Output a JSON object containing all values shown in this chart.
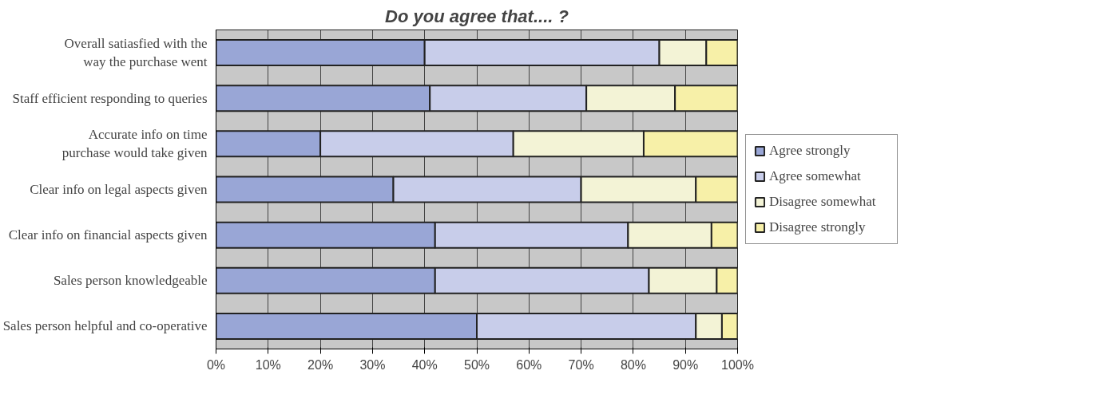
{
  "chart_data": {
    "type": "bar",
    "orientation": "horizontal",
    "stacked": true,
    "title": "Do you agree that.... ?",
    "categories": [
      "Overall satiasfied with the way the purchase went",
      "Staff efficient responding to queries",
      "Accurate info on time purchase would take given",
      "Clear info on legal aspects given",
      "Clear info on financial aspects given",
      "Sales person knowledgeable",
      "Sales person helpful and co-operative"
    ],
    "series": [
      {
        "name": "Agree strongly",
        "color": "#99a6d6",
        "values": [
          40,
          41,
          20,
          34,
          42,
          42,
          50
        ]
      },
      {
        "name": "Agree somewhat",
        "color": "#c8cdea",
        "values": [
          45,
          30,
          37,
          36,
          37,
          41,
          42
        ]
      },
      {
        "name": "Disagree somewhat",
        "color": "#f3f3d6",
        "values": [
          9,
          17,
          25,
          22,
          16,
          13,
          5
        ]
      },
      {
        "name": "Disagree strongly",
        "color": "#f7f0a8",
        "values": [
          6,
          12,
          18,
          8,
          5,
          4,
          3
        ]
      }
    ],
    "xlim": [
      0,
      100
    ],
    "xticks": [
      {
        "value": 0,
        "label": "0%"
      },
      {
        "value": 10,
        "label": "10%"
      },
      {
        "value": 20,
        "label": "20%"
      },
      {
        "value": 30,
        "label": "30%"
      },
      {
        "value": 40,
        "label": "40%"
      },
      {
        "value": 50,
        "label": "50%"
      },
      {
        "value": 60,
        "label": "60%"
      },
      {
        "value": 70,
        "label": "70%"
      },
      {
        "value": 80,
        "label": "80%"
      },
      {
        "value": 90,
        "label": "90%"
      },
      {
        "value": 100,
        "label": "100%"
      }
    ],
    "grid": "x",
    "legend": "right"
  }
}
